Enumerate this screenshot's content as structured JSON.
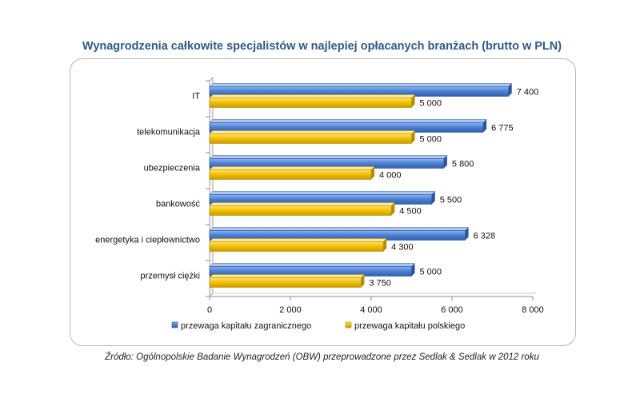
{
  "chart_data": {
    "type": "bar",
    "orientation": "horizontal",
    "title": "Wynagrodzenia całkowite specjalistów w najlepiej opłacanych branżach (brutto w PLN)",
    "categories": [
      "IT",
      "telekomunikacja",
      "ubezpieczenia",
      "bankowość",
      "energetyka i ciepłownictwo",
      "przemysł ciężki"
    ],
    "series": [
      {
        "name": "przewaga kapitału  zagranicznego",
        "values": [
          7400,
          6775,
          5800,
          5500,
          6328,
          5000
        ],
        "labels": [
          "7 400",
          "6 775",
          "5 800",
          "5 500",
          "6 328",
          "5 000"
        ],
        "color": "#4a7ed1"
      },
      {
        "name": "przewaga kapitału  polskiego",
        "values": [
          5000,
          5000,
          4000,
          4500,
          4300,
          3750
        ],
        "labels": [
          "5 000",
          "5 000",
          "4 000",
          "4 500",
          "4 300",
          "3 750"
        ],
        "color": "#f2c200"
      }
    ],
    "xlim": [
      0,
      8000
    ],
    "ticks": [
      0,
      2000,
      4000,
      6000,
      8000
    ],
    "tick_labels": [
      "0",
      "2 000",
      "4 000",
      "6 000",
      "8 000"
    ],
    "xlabel": "",
    "ylabel": "",
    "legend_position": "bottom",
    "grid": false
  },
  "source_note": "Źródło: Ogólnopolskie Badanie Wynagrodzeń (OBW) przeprowadzone przez Sedlak & Sedlak w 2012 roku"
}
